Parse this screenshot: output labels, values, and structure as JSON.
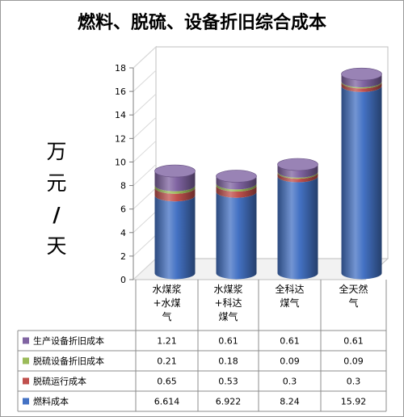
{
  "chart_data": {
    "type": "bar",
    "title": "燃料、脱硫、设备折旧综合成本",
    "ylabel": [
      "万",
      "元",
      "/",
      "天"
    ],
    "ylim": [
      0,
      18
    ],
    "yticks": [
      "0",
      "2",
      "4",
      "6",
      "8",
      "10",
      "12",
      "14",
      "16",
      "18"
    ],
    "categories": [
      [
        "水煤浆",
        "+水煤",
        "气"
      ],
      [
        "水煤浆",
        "+科达",
        "煤气"
      ],
      [
        "全科达",
        "煤气"
      ],
      [
        "全天然",
        "气"
      ]
    ],
    "stacked": true,
    "series": [
      {
        "name": "燃料成本",
        "color": "#4472C4",
        "values": [
          6.614,
          6.922,
          8.24,
          15.92
        ],
        "labels": [
          "6.614",
          "6.922",
          "8.24",
          "15.92"
        ]
      },
      {
        "name": "脱硫运行成本",
        "color": "#C0504D",
        "values": [
          0.65,
          0.53,
          0.3,
          0.3
        ],
        "labels": [
          "0.65",
          "0.53",
          "0.3",
          "0.3"
        ]
      },
      {
        "name": "脱硫设备折旧成本",
        "color": "#9BBB59",
        "values": [
          0.21,
          0.18,
          0.09,
          0.09
        ],
        "labels": [
          "0.21",
          "0.18",
          "0.09",
          "0.09"
        ]
      },
      {
        "name": "生产设备折旧成本",
        "color": "#8064A2",
        "values": [
          1.21,
          0.61,
          0.61,
          0.61
        ],
        "labels": [
          "1.21",
          "0.61",
          "0.61",
          "0.61"
        ]
      }
    ],
    "table_row_order": [
      3,
      2,
      1,
      0
    ],
    "grid": false,
    "legend": "data-table"
  }
}
